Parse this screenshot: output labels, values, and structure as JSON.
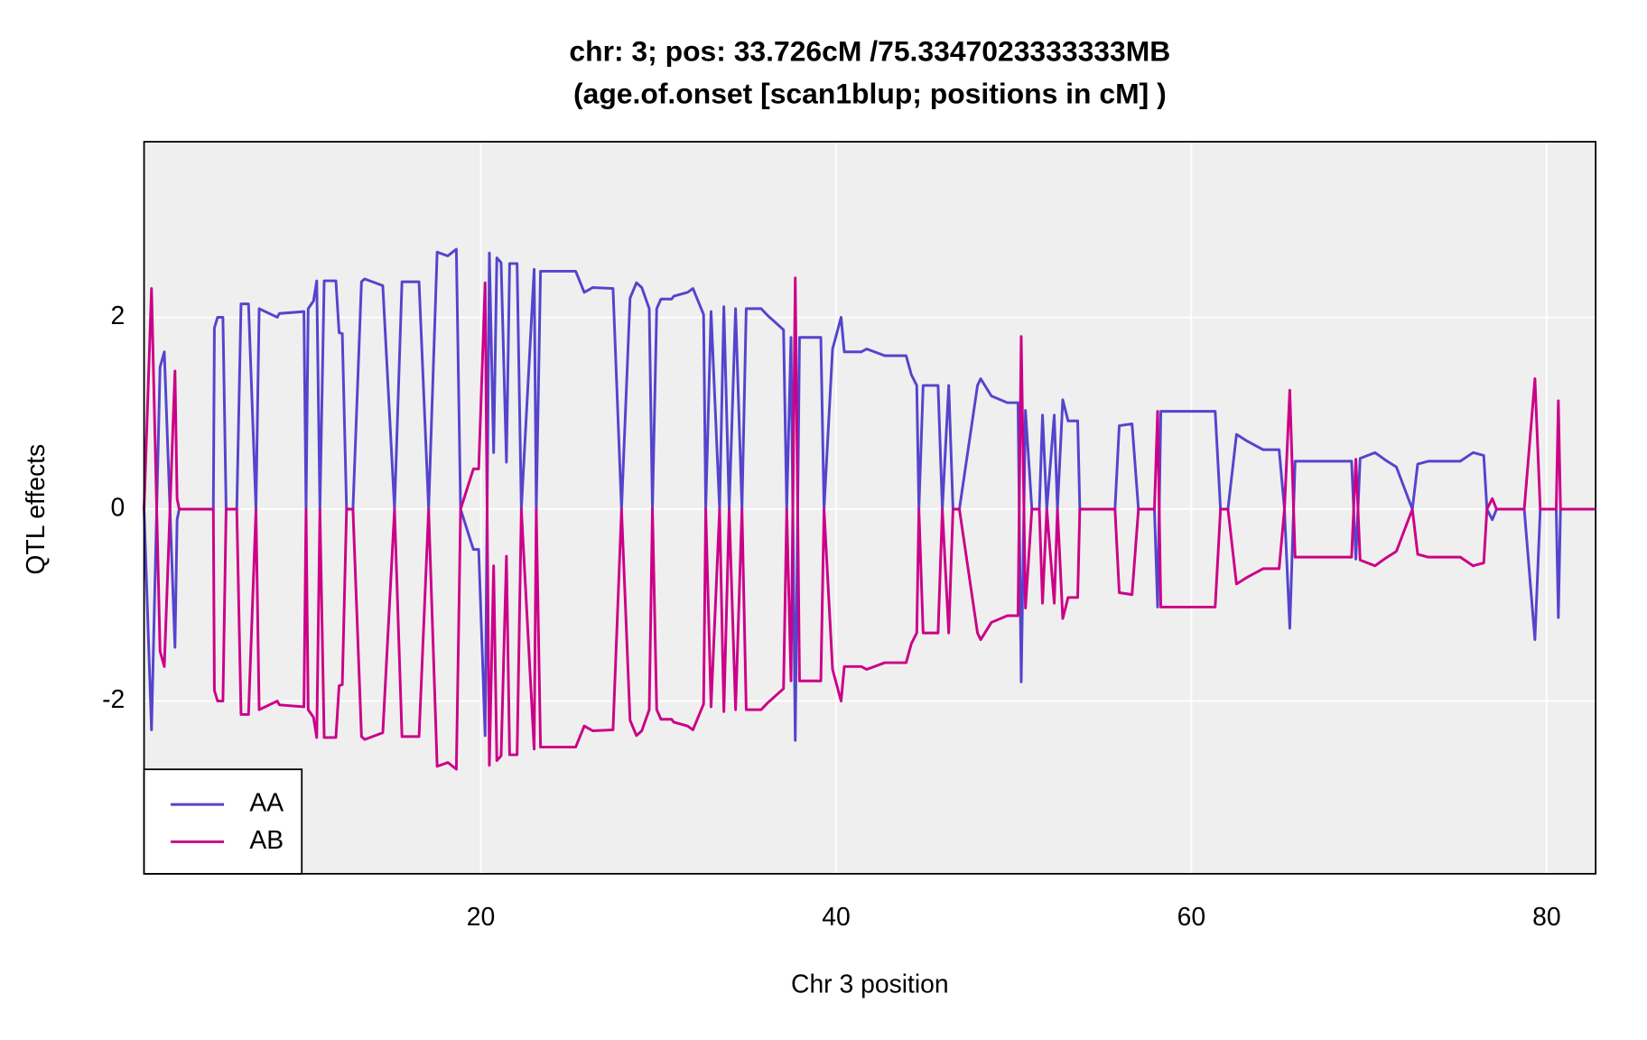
{
  "chart_data": {
    "type": "line",
    "title": "chr: 3; pos: 33.726cM /75.3347023333333MB",
    "subtitle": "(age.of.onset [scan1blup; positions in cM] )",
    "x_label": "Chr 3 position",
    "y_label": "QTL effects",
    "xlim": [
      1.04,
      82.76
    ],
    "ylim": [
      -3.8,
      3.83
    ],
    "xticks": [
      20,
      40,
      60,
      80
    ],
    "yticks": [
      -2,
      0,
      2
    ],
    "grid": true,
    "legend": "bottom-left",
    "x": [
      1.04,
      1.46,
      1.94,
      2.18,
      2.78,
      2.9,
      3.02,
      4.94,
      5.0,
      5.18,
      5.48,
      5.66,
      6.26,
      6.5,
      6.92,
      7.34,
      7.52,
      8.54,
      8.66,
      10.04,
      10.16,
      10.28,
      10.58,
      10.76,
      10.94,
      11.18,
      11.84,
      12.02,
      12.2,
      12.44,
      12.8,
      13.28,
      13.46,
      14.48,
      15.14,
      15.56,
      16.52,
      17.06,
      17.54,
      18.14,
      18.62,
      18.86,
      19.58,
      19.88,
      20.24,
      20.48,
      20.72,
      20.9,
      21.14,
      21.44,
      21.62,
      22.04,
      22.28,
      23.0,
      23.12,
      23.36,
      25.34,
      25.82,
      26.3,
      27.44,
      27.92,
      28.4,
      28.76,
      29.06,
      29.48,
      29.66,
      29.9,
      30.14,
      30.74,
      30.86,
      31.64,
      31.94,
      32.54,
      32.66,
      32.96,
      33.44,
      33.68,
      33.98,
      34.34,
      34.7,
      34.94,
      35.78,
      36.14,
      37.04,
      37.22,
      37.46,
      37.7,
      37.94,
      39.14,
      39.32,
      39.8,
      40.28,
      40.46,
      41.42,
      41.72,
      42.74,
      43.94,
      44.24,
      44.54,
      44.66,
      44.9,
      45.74,
      45.98,
      46.34,
      46.58,
      46.94,
      47.96,
      48.14,
      48.74,
      49.64,
      50.24,
      50.42,
      50.66,
      51.02,
      51.44,
      51.62,
      51.86,
      52.28,
      52.46,
      52.76,
      53.06,
      53.6,
      53.72,
      55.7,
      55.94,
      56.66,
      57.02,
      57.92,
      58.1,
      58.28,
      61.34,
      61.64,
      62.06,
      62.54,
      63.14,
      64.04,
      64.94,
      65.24,
      65.54,
      65.84,
      69.02,
      69.26,
      69.5,
      70.34,
      70.94,
      71.54,
      72.44,
      72.74,
      73.34,
      75.14,
      75.86,
      76.46,
      76.64,
      76.94,
      77.18,
      78.74,
      79.34,
      79.64,
      80.54,
      80.66,
      80.78,
      82.7
    ],
    "series": [
      {
        "name": "AA",
        "color": "#5544cc",
        "values": [
          0,
          -2.3,
          1.48,
          1.64,
          -1.44,
          -0.11,
          0,
          0,
          1.89,
          2.0,
          2.0,
          0,
          0,
          2.14,
          2.14,
          0,
          2.09,
          2.0,
          2.04,
          2.06,
          0,
          2.09,
          2.17,
          2.38,
          0,
          2.38,
          2.38,
          1.84,
          1.83,
          0,
          0,
          2.37,
          2.4,
          2.33,
          0,
          2.37,
          2.37,
          0,
          2.68,
          2.64,
          2.71,
          0,
          -0.42,
          -0.42,
          -2.36,
          2.67,
          0.59,
          2.62,
          2.57,
          0.49,
          2.56,
          2.56,
          0,
          2.5,
          0,
          2.48,
          2.48,
          2.26,
          2.31,
          2.3,
          0,
          2.2,
          2.36,
          2.31,
          2.09,
          0,
          2.09,
          2.19,
          2.19,
          2.22,
          2.26,
          2.3,
          2.03,
          0,
          2.06,
          0,
          2.11,
          0,
          2.09,
          0,
          2.09,
          2.09,
          2.02,
          1.87,
          0,
          1.79,
          -2.41,
          1.79,
          1.79,
          0,
          1.67,
          2.0,
          1.64,
          1.64,
          1.67,
          1.6,
          1.6,
          1.4,
          1.29,
          0,
          1.29,
          1.29,
          0,
          1.29,
          0,
          0,
          1.29,
          1.36,
          1.18,
          1.11,
          1.11,
          -1.8,
          1.03,
          0,
          0,
          0.98,
          0,
          0.98,
          0,
          1.14,
          0.92,
          0.92,
          0,
          0,
          0.87,
          0.89,
          0,
          0,
          -1.02,
          1.02,
          1.02,
          0,
          0,
          0.78,
          0.71,
          0.62,
          0.62,
          0,
          -1.24,
          0.5,
          0.5,
          -0.52,
          0.53,
          0.59,
          0.51,
          0.44,
          0,
          0.47,
          0.5,
          0.5,
          0.59,
          0.56,
          0,
          -0.11,
          0,
          0,
          -1.36,
          0,
          0,
          -1.13,
          0,
          0
        ]
      },
      {
        "name": "AB",
        "color": "#cc0088",
        "values": [
          0,
          2.3,
          -1.48,
          -1.64,
          1.44,
          0.11,
          0,
          0,
          -1.89,
          -2.0,
          -2.0,
          0,
          0,
          -2.14,
          -2.14,
          0,
          -2.09,
          -2.0,
          -2.04,
          -2.06,
          0,
          -2.09,
          -2.17,
          -2.38,
          0,
          -2.38,
          -2.38,
          -1.84,
          -1.83,
          0,
          0,
          -2.37,
          -2.4,
          -2.33,
          0,
          -2.37,
          -2.37,
          0,
          -2.68,
          -2.64,
          -2.71,
          0,
          0.42,
          0.42,
          2.36,
          -2.67,
          -0.59,
          -2.62,
          -2.57,
          -0.49,
          -2.56,
          -2.56,
          0,
          -2.5,
          0,
          -2.48,
          -2.48,
          -2.26,
          -2.31,
          -2.3,
          0,
          -2.2,
          -2.36,
          -2.31,
          -2.09,
          0,
          -2.09,
          -2.19,
          -2.19,
          -2.22,
          -2.26,
          -2.3,
          -2.03,
          0,
          -2.06,
          0,
          -2.11,
          0,
          -2.09,
          0,
          -2.09,
          -2.09,
          -2.02,
          -1.87,
          0,
          -1.79,
          2.41,
          -1.79,
          -1.79,
          0,
          -1.67,
          -2.0,
          -1.64,
          -1.64,
          -1.67,
          -1.6,
          -1.6,
          -1.4,
          -1.29,
          0,
          -1.29,
          -1.29,
          0,
          -1.29,
          0,
          0,
          -1.29,
          -1.36,
          -1.18,
          -1.11,
          -1.11,
          1.8,
          -1.03,
          0,
          0,
          -0.98,
          0,
          -0.98,
          0,
          -1.14,
          -0.92,
          -0.92,
          0,
          0,
          -0.87,
          -0.89,
          0,
          0,
          1.02,
          -1.02,
          -1.02,
          0,
          0,
          -0.78,
          -0.71,
          -0.62,
          -0.62,
          0,
          1.24,
          -0.5,
          -0.5,
          0.52,
          -0.53,
          -0.59,
          -0.51,
          -0.44,
          0,
          -0.47,
          -0.5,
          -0.5,
          -0.59,
          -0.56,
          0,
          0.11,
          0,
          0,
          1.36,
          0,
          0,
          1.13,
          0,
          0
        ]
      }
    ]
  }
}
